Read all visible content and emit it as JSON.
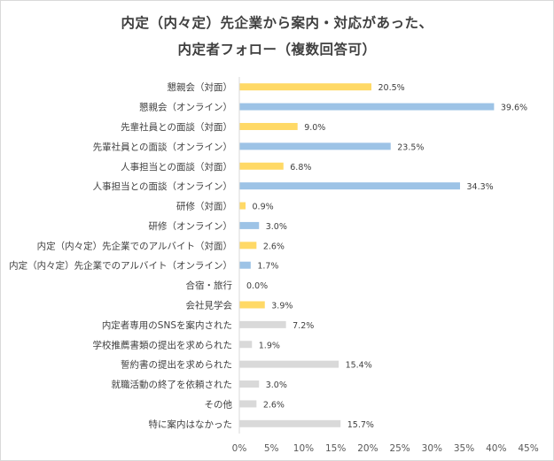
{
  "chart_data": {
    "type": "bar",
    "orientation": "horizontal",
    "title_line1": "内定（内々定）先企業から案内・対応があった、",
    "title_line2": "内定者フォロー（複数回答可）",
    "categories": [
      "懇親会（対面）",
      "懇親会（オンライン）",
      "先輩社員との面談（対面）",
      "先輩社員との面談（オンライン）",
      "人事担当との面談（対面）",
      "人事担当との面談（オンライン）",
      "研修（対面）",
      "研修（オンライン）",
      "内定（内々定）先企業でのアルバイト（対面）",
      "内定（内々定）先企業でのアルバイト（オンライン）",
      "合宿・旅行",
      "会社見学会",
      "内定者専用のSNSを案内された",
      "学校推薦書類の提出を求められた",
      "誓約書の提出を求められた",
      "就職活動の終了を依頼された",
      "その他",
      "特に案内はなかった"
    ],
    "values": [
      20.5,
      39.6,
      9.0,
      23.5,
      6.8,
      34.3,
      0.9,
      3.0,
      2.6,
      1.7,
      0.0,
      3.9,
      7.2,
      1.9,
      15.4,
      3.0,
      2.6,
      15.7
    ],
    "value_labels": [
      "20.5%",
      "39.6%",
      "9.0%",
      "23.5%",
      "6.8%",
      "34.3%",
      "0.9%",
      "3.0%",
      "2.6%",
      "1.7%",
      "0.0%",
      "3.9%",
      "7.2%",
      "1.9%",
      "15.4%",
      "3.0%",
      "2.6%",
      "15.7%"
    ],
    "bar_groups": [
      "face",
      "online",
      "face",
      "online",
      "face",
      "online",
      "face",
      "online",
      "face",
      "online",
      "face",
      "face",
      "other",
      "other",
      "other",
      "other",
      "other",
      "other"
    ],
    "colors": {
      "face": "#ffd966",
      "online": "#9dc3e6",
      "other": "#d9d9d9",
      "axis": "#d9d9d9"
    },
    "xlim": [
      0,
      45
    ],
    "xticks": [
      0,
      5,
      10,
      15,
      20,
      25,
      30,
      35,
      40,
      45
    ],
    "xtick_labels": [
      "0%",
      "5%",
      "10%",
      "15%",
      "20%",
      "25%",
      "30%",
      "35%",
      "40%",
      "45%"
    ],
    "grid": false,
    "legend": "none"
  }
}
